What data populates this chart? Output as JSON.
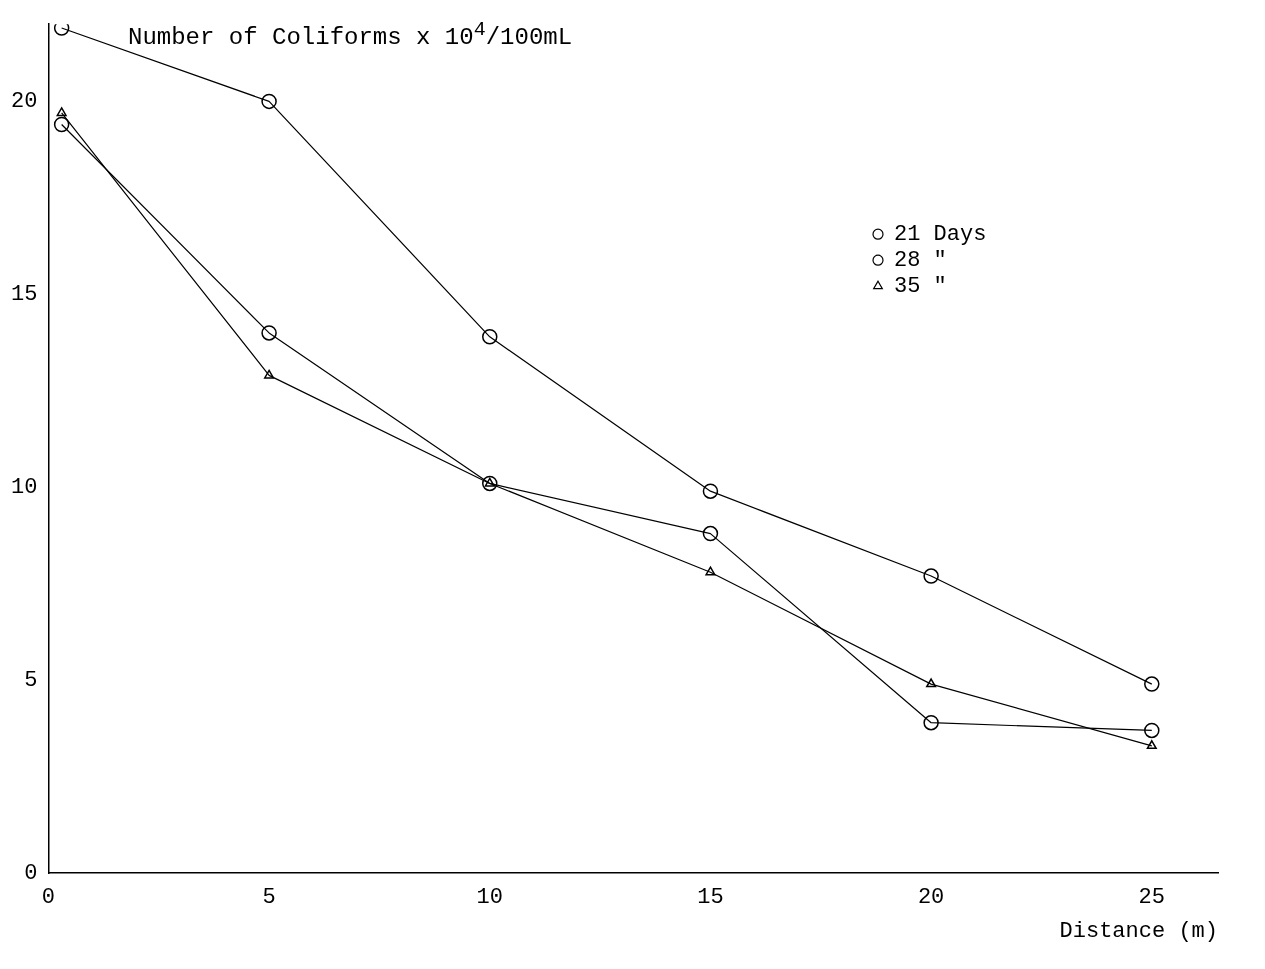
{
  "chart_data": {
    "type": "line",
    "title": "Number of Coliforms x 10$^{4}$/100mL",
    "xlabel": "Distance (m)",
    "xlim": [
      0,
      26.5
    ],
    "xticks": [
      0,
      5,
      10,
      15,
      20,
      25
    ],
    "ylim": [
      0,
      22
    ],
    "yticks": [
      0,
      5,
      10,
      15,
      20
    ],
    "grid": false,
    "legend": "top right",
    "line_style": "solid",
    "series": [
      {
        "name": "21 Days",
        "color": "#000000",
        "marker": "circle",
        "x": [
          0.3,
          5,
          10,
          15,
          20,
          25
        ],
        "values": [
          21.9,
          20.0,
          13.9,
          9.9,
          7.7,
          4.9
        ]
      },
      {
        "name": "28 \"",
        "color": "#000000",
        "marker": "circle",
        "x": [
          0.3,
          5,
          10,
          15,
          20,
          25
        ],
        "values": [
          19.4,
          14.0,
          10.1,
          8.8,
          3.9,
          3.7
        ]
      },
      {
        "name": "35 \"",
        "color": "#000000",
        "marker": "triangle",
        "x": [
          0.3,
          5,
          10,
          15,
          20,
          25
        ],
        "values": [
          19.7,
          12.9,
          10.1,
          7.8,
          4.9,
          3.3
        ]
      }
    ]
  }
}
